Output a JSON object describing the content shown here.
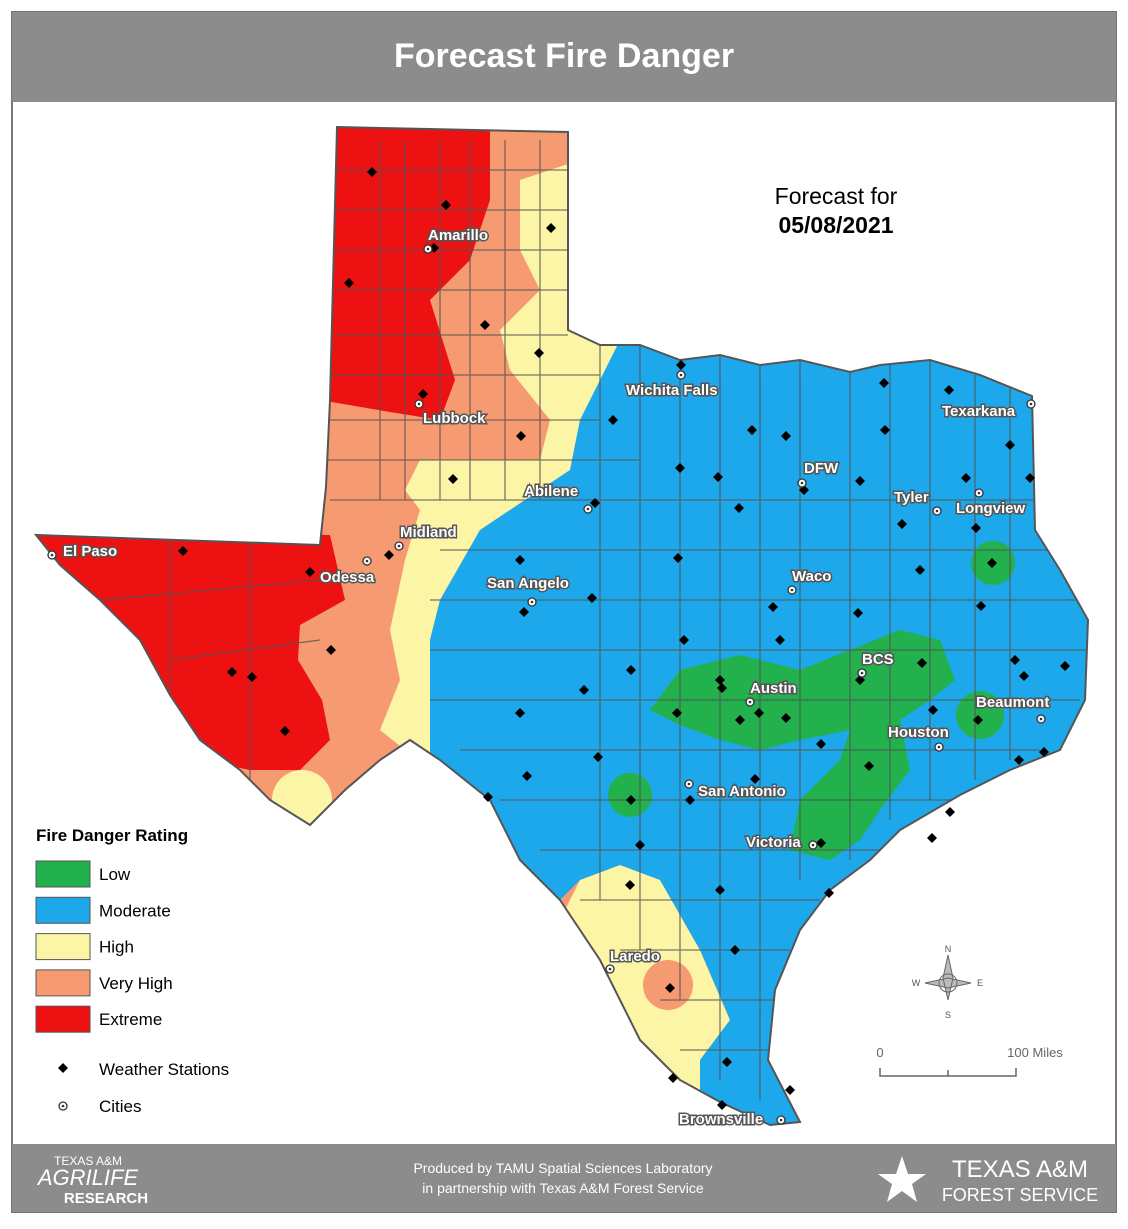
{
  "header": {
    "title": "Forecast Fire Danger"
  },
  "forecast": {
    "label": "Forecast for",
    "date": "05/08/2021"
  },
  "cities": [
    "El Paso",
    "Amarillo",
    "Lubbock",
    "Wichita Falls",
    "Texarkana",
    "DFW",
    "Tyler",
    "Longview",
    "Abilene",
    "Midland",
    "Odessa",
    "San Angelo",
    "Waco",
    "BCS",
    "Austin",
    "Beaumont",
    "Houston",
    "San Antonio",
    "Victoria",
    "Laredo",
    "Brownsville"
  ],
  "legend": {
    "title": "Fire Danger Rating",
    "ratings": [
      {
        "label": "Low",
        "color": "#22b14c"
      },
      {
        "label": "Moderate",
        "color": "#1ea8ec"
      },
      {
        "label": "High",
        "color": "#fdf5a6"
      },
      {
        "label": "Very High",
        "color": "#f69a72"
      },
      {
        "label": "Extreme",
        "color": "#ee1111"
      }
    ],
    "symbols": [
      "Weather Stations",
      "Cities"
    ]
  },
  "compass": [
    "N",
    "E",
    "S",
    "W"
  ],
  "scale": [
    "0",
    "100 Miles"
  ],
  "footer": {
    "credit": [
      "Produced by TAMU Spatial Sciences Laboratory",
      "in partnership with Texas A&M Forest Service"
    ],
    "left_logo": [
      "TEXAS A&M",
      "AGRILIFE",
      "RESEARCH"
    ],
    "right_logo": [
      "TEXAS A&M",
      "FOREST SERVICE"
    ]
  }
}
